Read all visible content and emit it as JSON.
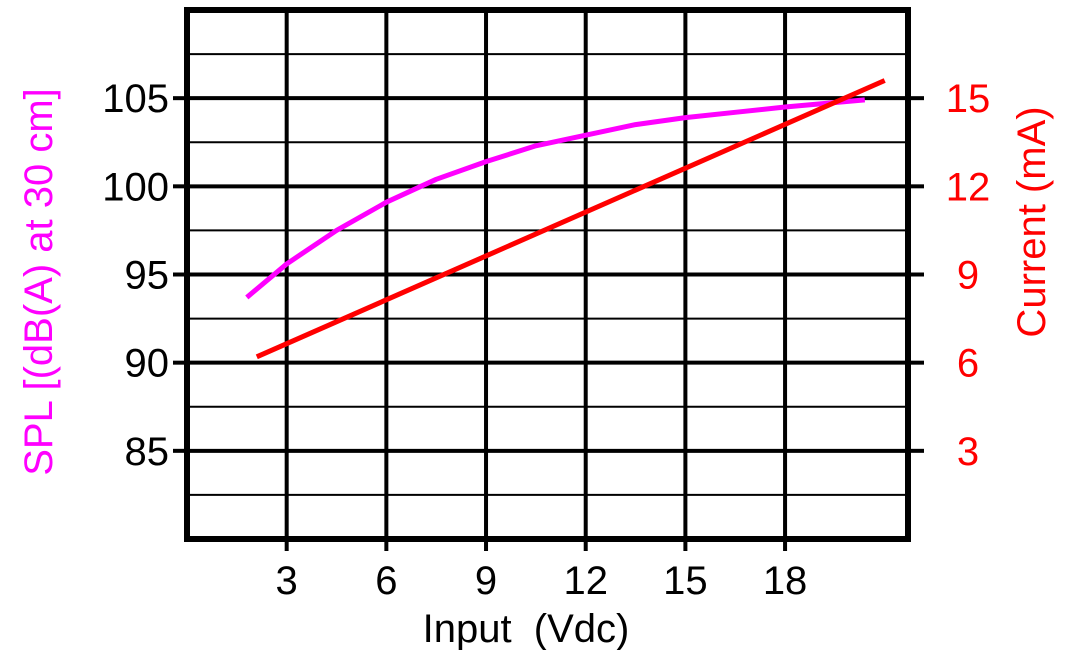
{
  "chart_data": {
    "type": "line",
    "xlabel": "Input  (Vdc)",
    "ylabel_left": "SPL  [(dB(A) at 30 cm]",
    "ylabel_right": "Current (mA)",
    "x_ticks": [
      3,
      6,
      9,
      12,
      15,
      18
    ],
    "x_tick_labels": [
      "3",
      "6",
      "9",
      "12",
      "15",
      "18"
    ],
    "y_left_ticks": [
      85,
      90,
      95,
      100,
      105
    ],
    "y_left_tick_labels": [
      "85",
      "90",
      "95",
      "100",
      "105"
    ],
    "y_right_ticks": [
      3,
      6,
      9,
      12,
      15
    ],
    "y_right_tick_labels": [
      "3",
      "6",
      "9",
      "12",
      "15"
    ],
    "xlim": [
      0,
      21.7
    ],
    "ylim_left": [
      80,
      110
    ],
    "ylim_right": [
      0,
      18
    ],
    "grid": true,
    "series": [
      {
        "axis": "left",
        "color": "#ff00ff",
        "x": [
          1.8,
          3,
          4.5,
          6,
          7.5,
          9,
          10.5,
          12,
          13.5,
          15,
          16.5,
          18,
          20.4
        ],
        "y": [
          93.7,
          95.6,
          97.5,
          99.1,
          100.4,
          101.4,
          102.3,
          102.9,
          103.5,
          103.9,
          104.2,
          104.5,
          104.9
        ]
      },
      {
        "axis": "right",
        "color": "#ff0000",
        "x": [
          2.1,
          21.0
        ],
        "y": [
          6.2,
          15.6
        ]
      }
    ],
    "colors": {
      "left_axis": "#ff00ff",
      "right_axis": "#ff0000",
      "frame": "#000000"
    }
  }
}
